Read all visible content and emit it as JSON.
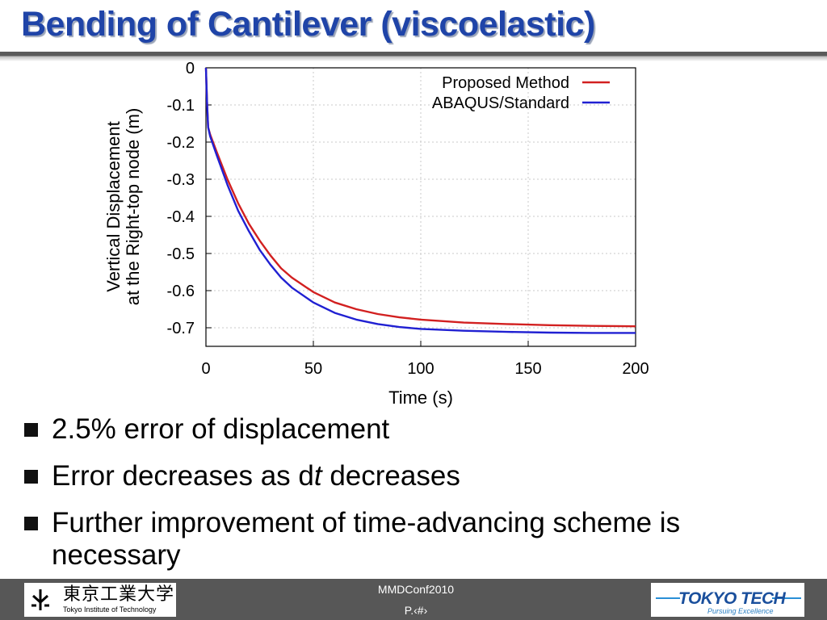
{
  "slide": {
    "title": "Bending of Cantilever (viscoelastic)"
  },
  "bullets": [
    "2.5% error of displacement",
    "Error decreases as d",
    "t",
    " decreases",
    "Further improvement of time-advancing scheme is necessary"
  ],
  "footer": {
    "conference": "MMDConf2010",
    "page": "P.‹#›",
    "left_logo_kanji": "東京工業大学",
    "left_logo_english": "Tokyo Institute of Technology",
    "right_logo_text": "TOKYO TECH",
    "right_logo_tagline": "Pursuing Excellence"
  },
  "colors": {
    "title": "#1f44a8",
    "proposed": "#d22020",
    "abaqus": "#2020d2",
    "footer_bg": "#575757"
  },
  "chart_data": {
    "type": "line",
    "xlabel": "Time (s)",
    "ylabel_line1": "Vertical Displacement",
    "ylabel_line2": "at the Right-top node (m)",
    "xlim": [
      0,
      200
    ],
    "ylim": [
      -0.75,
      0
    ],
    "xticks": [
      0,
      50,
      100,
      150,
      200
    ],
    "yticks": [
      0,
      -0.1,
      -0.2,
      -0.3,
      -0.4,
      -0.5,
      -0.6,
      -0.7
    ],
    "grid": true,
    "legend_position": "top-right",
    "series": [
      {
        "name": "Proposed Method",
        "color": "#d22020",
        "x": [
          0,
          0.5,
          1,
          2,
          5,
          10,
          15,
          20,
          25,
          30,
          35,
          40,
          50,
          60,
          70,
          80,
          90,
          100,
          120,
          140,
          160,
          180,
          200
        ],
        "y": [
          0,
          -0.09,
          -0.16,
          -0.18,
          -0.226,
          -0.3,
          -0.365,
          -0.42,
          -0.465,
          -0.505,
          -0.54,
          -0.565,
          -0.604,
          -0.632,
          -0.65,
          -0.663,
          -0.672,
          -0.678,
          -0.686,
          -0.69,
          -0.693,
          -0.695,
          -0.696
        ]
      },
      {
        "name": "ABAQUS/Standard",
        "color": "#2020d2",
        "x": [
          0,
          0.5,
          1,
          2,
          5,
          10,
          15,
          20,
          25,
          30,
          35,
          40,
          50,
          60,
          70,
          80,
          90,
          100,
          120,
          140,
          160,
          180,
          200
        ],
        "y": [
          0,
          -0.09,
          -0.16,
          -0.185,
          -0.235,
          -0.315,
          -0.385,
          -0.44,
          -0.49,
          -0.53,
          -0.565,
          -0.592,
          -0.632,
          -0.66,
          -0.678,
          -0.69,
          -0.698,
          -0.703,
          -0.708,
          -0.711,
          -0.713,
          -0.714,
          -0.714
        ]
      }
    ]
  }
}
